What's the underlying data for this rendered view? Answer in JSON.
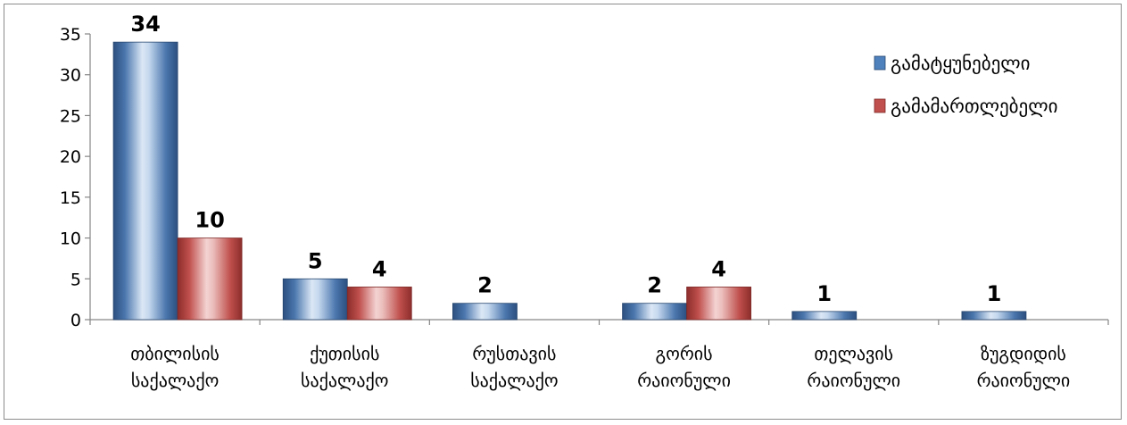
{
  "chart_data": {
    "type": "bar",
    "title": "",
    "xlabel": "",
    "ylabel": "",
    "categories": [
      [
        "თბილისის",
        "საქალაქო"
      ],
      [
        "ქუთისის",
        "საქალაქო"
      ],
      [
        "რუსთავის",
        "საქალაქო"
      ],
      [
        "გორის",
        "რაიონული"
      ],
      [
        "თელავის",
        "რაიონული"
      ],
      [
        "ზუგდიდის",
        "რაიონული"
      ]
    ],
    "series": [
      {
        "name": "გამატყუნებელი",
        "values": [
          34,
          5,
          2,
          2,
          1,
          1
        ],
        "color": "#4f81bd"
      },
      {
        "name": "გამამართლებელი",
        "values": [
          10,
          4,
          null,
          4,
          null,
          null
        ],
        "color": "#c0504d"
      }
    ],
    "ylim": [
      0,
      35
    ],
    "yticks": [
      0,
      5,
      10,
      15,
      20,
      25,
      30,
      35
    ],
    "grid": false,
    "legend_position": "top-right"
  }
}
